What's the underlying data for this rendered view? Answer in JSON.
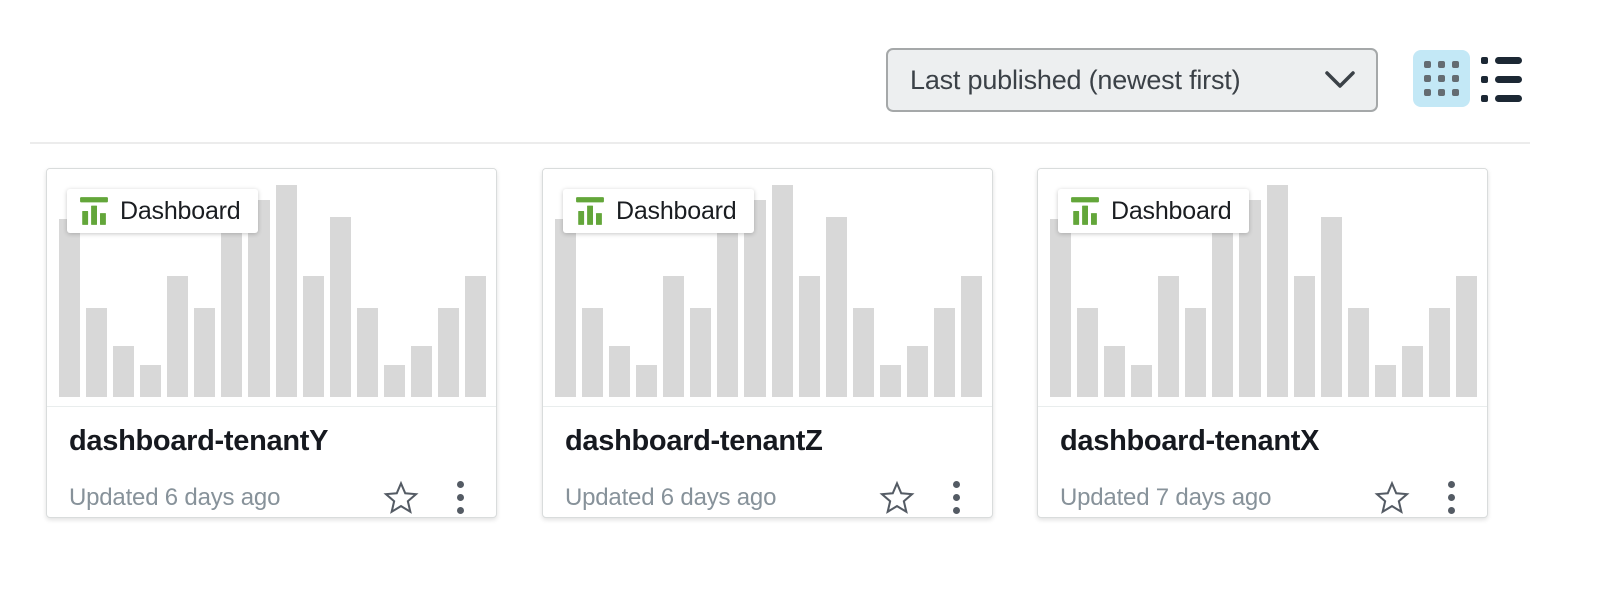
{
  "toolbar": {
    "sort_dropdown": {
      "value": "Last published (newest first)",
      "chevron_icon": "chevron-down"
    },
    "view_toggle": {
      "grid_icon": "grid-view",
      "list_icon": "list-view",
      "selected": "grid"
    }
  },
  "cards": [
    {
      "badge": {
        "icon": "dashboard-bar-chart",
        "label": "Dashboard"
      },
      "title": "dashboard-tenantY",
      "updated_text": "Updated 6 days ago",
      "favorite_icon": "star-outline",
      "menu_icon": "kebab-menu"
    },
    {
      "badge": {
        "icon": "dashboard-bar-chart",
        "label": "Dashboard"
      },
      "title": "dashboard-tenantZ",
      "updated_text": "Updated 6 days ago",
      "favorite_icon": "star-outline",
      "menu_icon": "kebab-menu"
    },
    {
      "badge": {
        "icon": "dashboard-bar-chart",
        "label": "Dashboard"
      },
      "title": "dashboard-tenantX",
      "updated_text": "Updated 7 days ago",
      "favorite_icon": "star-outline",
      "menu_icon": "kebab-menu"
    }
  ],
  "thumbnail_chart": {
    "type": "bar",
    "bar_heights_percent": [
      84,
      42,
      24,
      15,
      57,
      42,
      84,
      93,
      100,
      57,
      85,
      42,
      15,
      24,
      42,
      57
    ],
    "bar_color": "#d8d8d8"
  },
  "colors": {
    "accent_green": "#63a63a",
    "toggle_selected_bg": "#c3e8f6",
    "dropdown_bg": "#edeff0",
    "dropdown_border": "#a5a8a9",
    "card_border": "#d9dcdc",
    "title_text": "#16191f",
    "muted_text": "#87929a",
    "icon_gray": "#545b64",
    "divider": "#ececec",
    "list_icon_color": "#1c2834"
  }
}
